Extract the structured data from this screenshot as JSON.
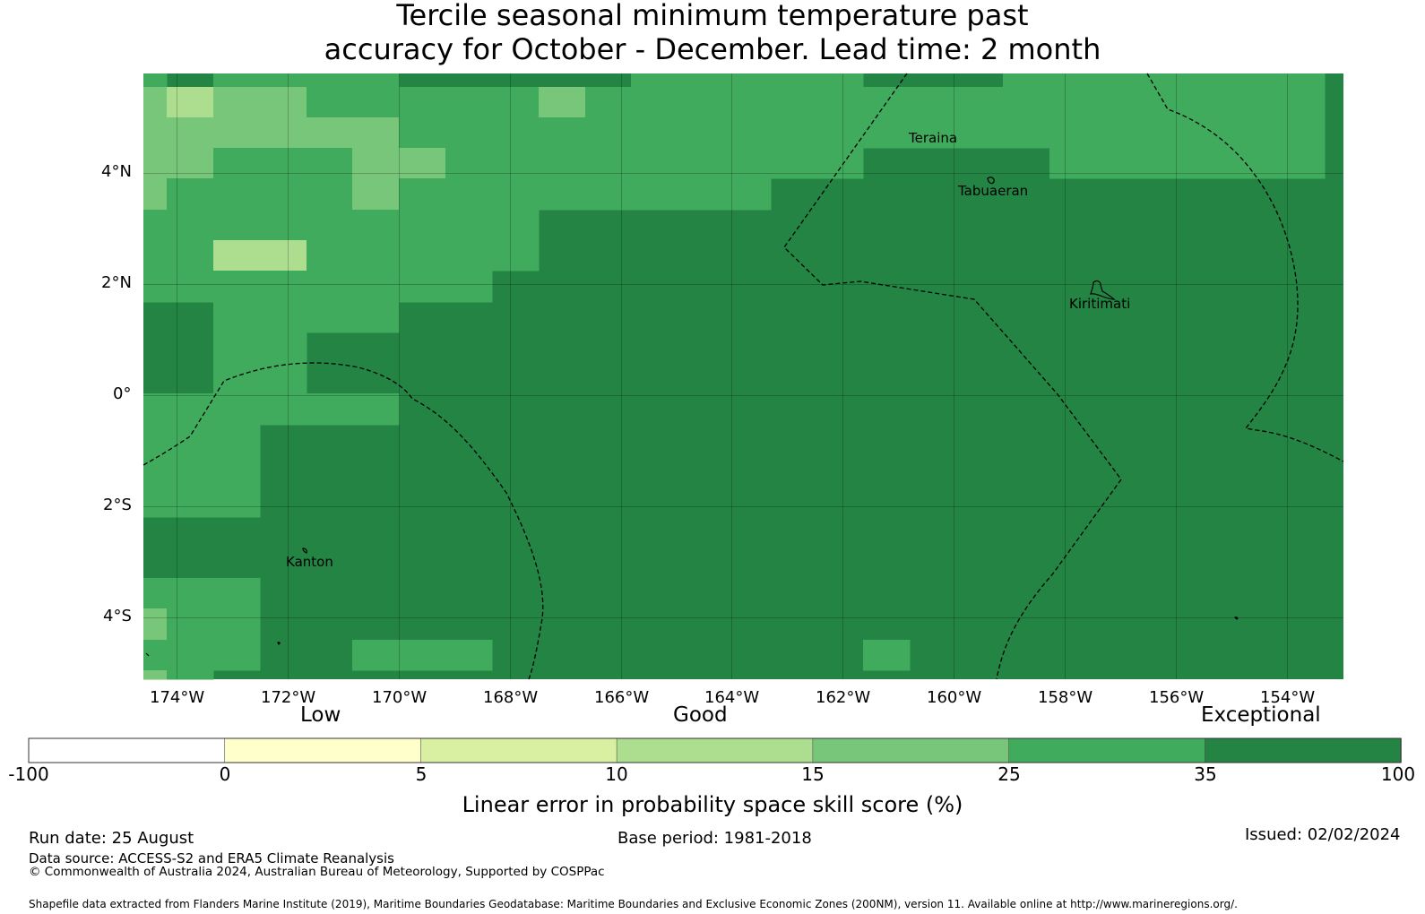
{
  "title": {
    "line1": "Tercile seasonal minimum temperature past",
    "line2": "accuracy for October - December. Lead time: 2 month"
  },
  "map": {
    "lon_labels": [
      "174°W",
      "172°W",
      "170°W",
      "168°W",
      "166°W",
      "164°W",
      "162°W",
      "160°W",
      "158°W",
      "156°W",
      "154°W"
    ],
    "lat_labels": [
      "4°N",
      "2°N",
      "0°",
      "2°S",
      "4°S"
    ],
    "places": [
      {
        "name": "Teraina"
      },
      {
        "name": "Tabuaeran"
      },
      {
        "name": "Kiritimati"
      },
      {
        "name": "Kanton"
      }
    ],
    "colors": {
      "lt0": "#ffffff",
      "c0_5": "#ffffcc",
      "c5_10": "#d9f0a3",
      "c10_15": "#addd8e",
      "c15_25": "#78c679",
      "c25_35": "#41ab5d",
      "c35_100": "#238443"
    }
  },
  "legend": {
    "categories": [
      "Low",
      "Good",
      "Exceptional"
    ],
    "ticks": [
      "-100",
      "0",
      "5",
      "10",
      "15",
      "25",
      "35",
      "100"
    ],
    "colors": [
      "#ffffff",
      "#ffffcc",
      "#d9f0a3",
      "#addd8e",
      "#78c679",
      "#41ab5d",
      "#238443"
    ],
    "title": "Linear error in probability space skill score (%)"
  },
  "footer": {
    "run_date": "Run date: 25 August",
    "base_period": "Base period: 1981-2018",
    "issued": "Issued: 02/02/2024",
    "data_source": "Data source: ACCESS-S2 and ERA5 Climate Reanalysis",
    "copyright": "© Commonwealth of Australia 2024, Australian Bureau of Meteorology, Supported by COSPPac",
    "shapefile": "Shapefile data extracted from Flanders Marine Institute (2019), Maritime Boundaries Geodatabase: Maritime Boundaries and Exclusive Economic Zones (200NM), version 11. Available online at http://www.marineregions.org/."
  }
}
